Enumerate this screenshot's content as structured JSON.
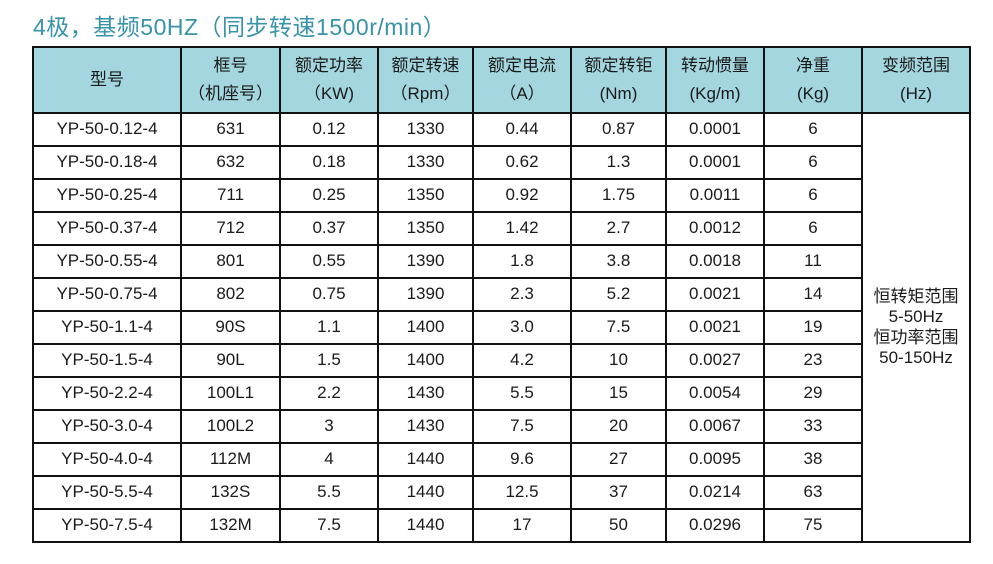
{
  "title": "4极，基频50HZ（同步转速1500r/min）",
  "table": {
    "headers": [
      {
        "line1": "型号",
        "line2": ""
      },
      {
        "line1": "框号",
        "line2": "（机座号）"
      },
      {
        "line1": "额定功率",
        "line2": "（KW)"
      },
      {
        "line1": "额定转速",
        "line2": "（Rpm）"
      },
      {
        "line1": "额定电流",
        "line2": "（A）"
      },
      {
        "line1": "额定转钜",
        "line2": "(Nm)"
      },
      {
        "line1": "转动惯量",
        "line2": "(Kg/m)"
      },
      {
        "line1": "净重",
        "line2": "(Kg)"
      },
      {
        "line1": "变频范围",
        "line2": "(Hz)"
      }
    ],
    "rows": [
      [
        "YP-50-0.12-4",
        "631",
        "0.12",
        "1330",
        "0.44",
        "0.87",
        "0.0001",
        "6"
      ],
      [
        "YP-50-0.18-4",
        "632",
        "0.18",
        "1330",
        "0.62",
        "1.3",
        "0.0001",
        "6"
      ],
      [
        "YP-50-0.25-4",
        "711",
        "0.25",
        "1350",
        "0.92",
        "1.75",
        "0.0011",
        "6"
      ],
      [
        "YP-50-0.37-4",
        "712",
        "0.37",
        "1350",
        "1.42",
        "2.7",
        "0.0012",
        "6"
      ],
      [
        "YP-50-0.55-4",
        "801",
        "0.55",
        "1390",
        "1.8",
        "3.8",
        "0.0018",
        "11"
      ],
      [
        "YP-50-0.75-4",
        "802",
        "0.75",
        "1390",
        "2.3",
        "5.2",
        "0.0021",
        "14"
      ],
      [
        "YP-50-1.1-4",
        "90S",
        "1.1",
        "1400",
        "3.0",
        "7.5",
        "0.0021",
        "19"
      ],
      [
        "YP-50-1.5-4",
        "90L",
        "1.5",
        "1400",
        "4.2",
        "10",
        "0.0027",
        "23"
      ],
      [
        "YP-50-2.2-4",
        "100L1",
        "2.2",
        "1430",
        "5.5",
        "15",
        "0.0054",
        "29"
      ],
      [
        "YP-50-3.0-4",
        "100L2",
        "3",
        "1430",
        "7.5",
        "20",
        "0.0067",
        "33"
      ],
      [
        "YP-50-4.0-4",
        "112M",
        "4",
        "1440",
        "9.6",
        "27",
        "0.0095",
        "38"
      ],
      [
        "YP-50-5.5-4",
        "132S",
        "5.5",
        "1440",
        "12.5",
        "37",
        "0.0214",
        "63"
      ],
      [
        "YP-50-7.5-4",
        "132M",
        "7.5",
        "1440",
        "17",
        "50",
        "0.0296",
        "75"
      ]
    ],
    "freq_range_lines": [
      "恒转矩范围",
      "5-50Hz",
      "恒功率范围",
      "50-150Hz"
    ]
  },
  "colors": {
    "title_text": "#3793aa",
    "header_bg": "#a3d6de",
    "border": "#111111"
  }
}
